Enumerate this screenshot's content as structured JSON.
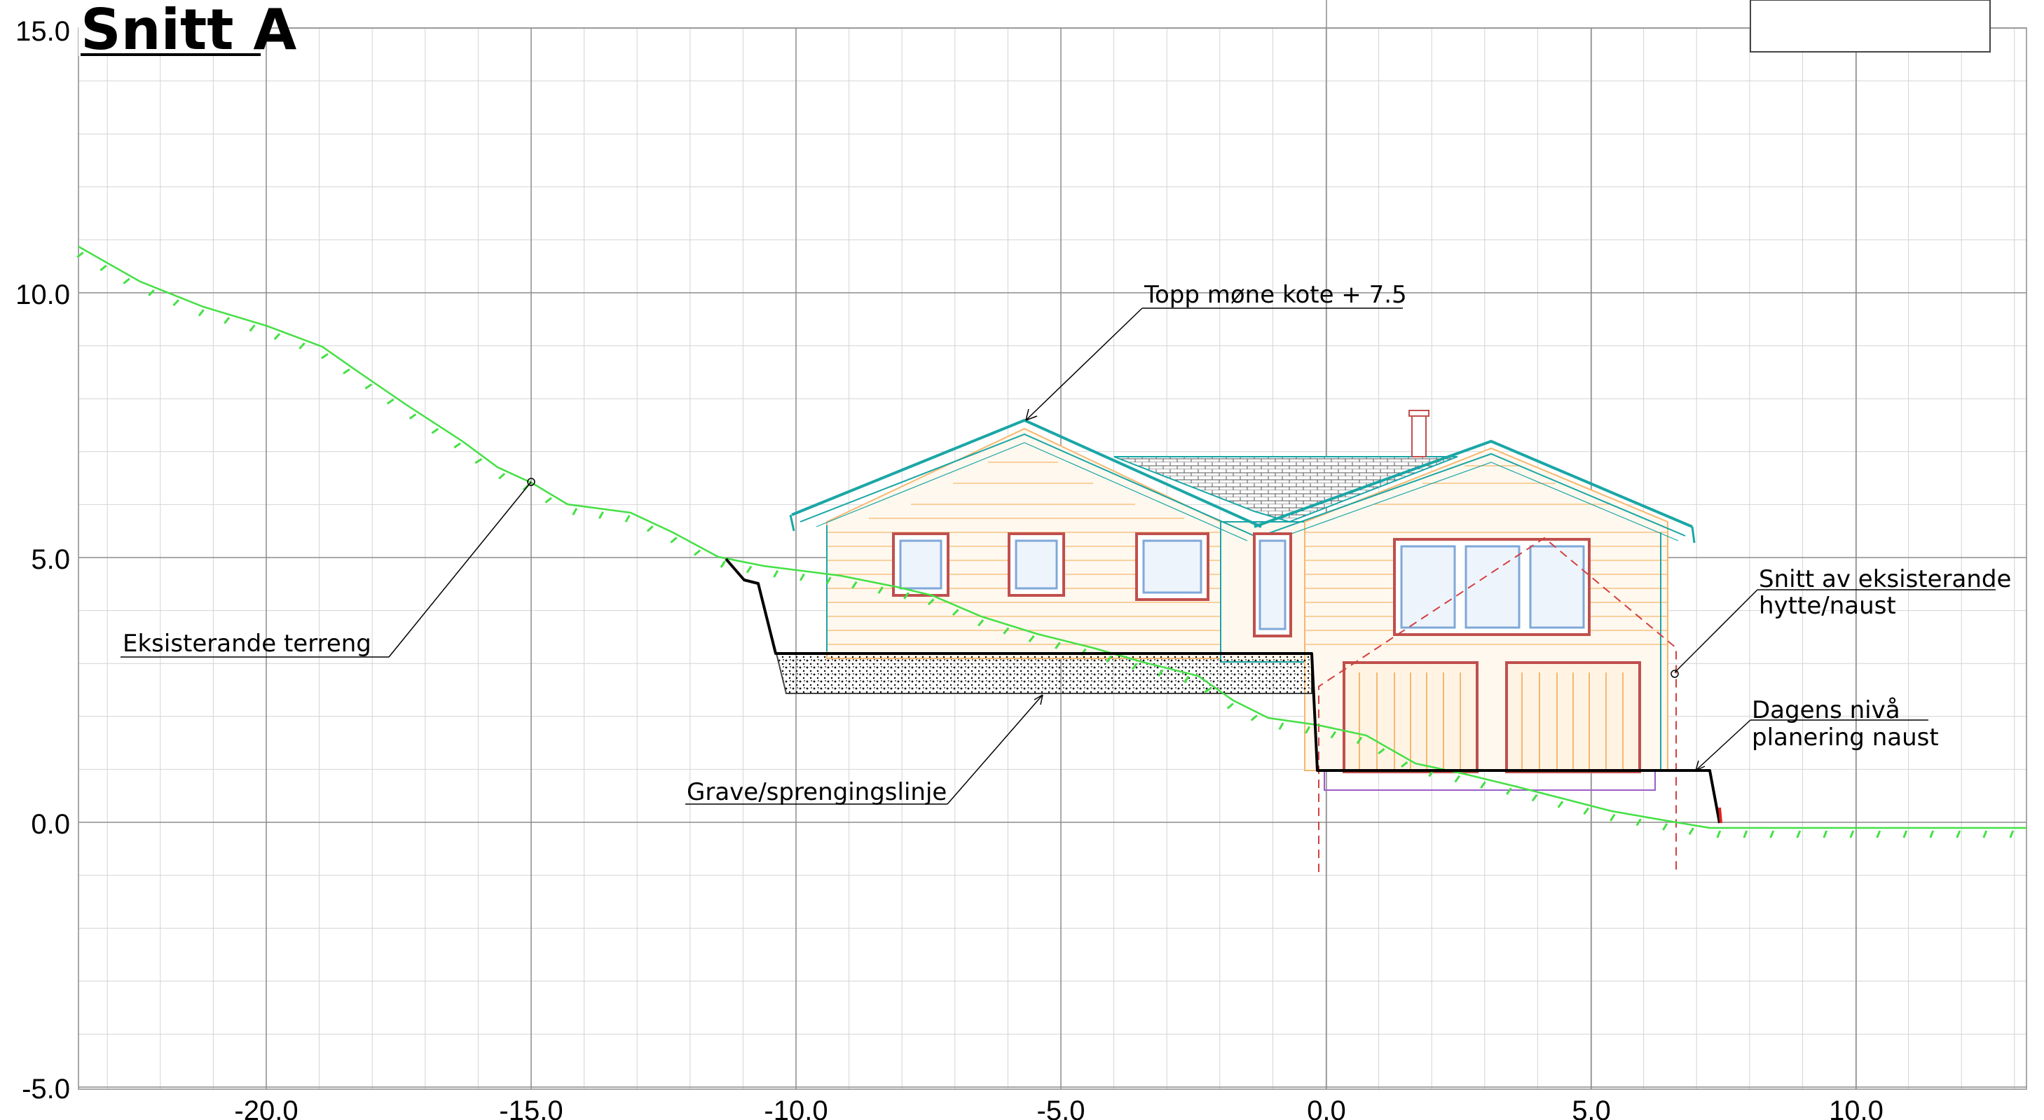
{
  "title": "Snitt A",
  "axes": {
    "x_ticks": [
      "-20.0",
      "-15.0",
      "-10.0",
      "-5.0",
      "0.0",
      "5.0",
      "10.0"
    ],
    "y_ticks": [
      "15.0",
      "10.0",
      "5.0",
      "0.0",
      "-5.0"
    ]
  },
  "annotations": {
    "ridge": "Topp møne kote + 7.5",
    "terrain": "Eksisterande terreng",
    "excavation": "Grave/sprengingslinje",
    "existing_cabin_1": "Snitt av eksisterande",
    "existing_cabin_2": "hytte/naust",
    "level_1": "Dagens nivå",
    "level_2": "planering naust"
  },
  "colors": {
    "terrain": "#44e044",
    "roof": "#1aa6a6",
    "walls": "#f5b870",
    "window_frame": "#c0504d",
    "window_glass": "#7fa8d8",
    "excavation": "#000000",
    "section_line": "#d24040",
    "foundation": "#9a5fc8"
  }
}
